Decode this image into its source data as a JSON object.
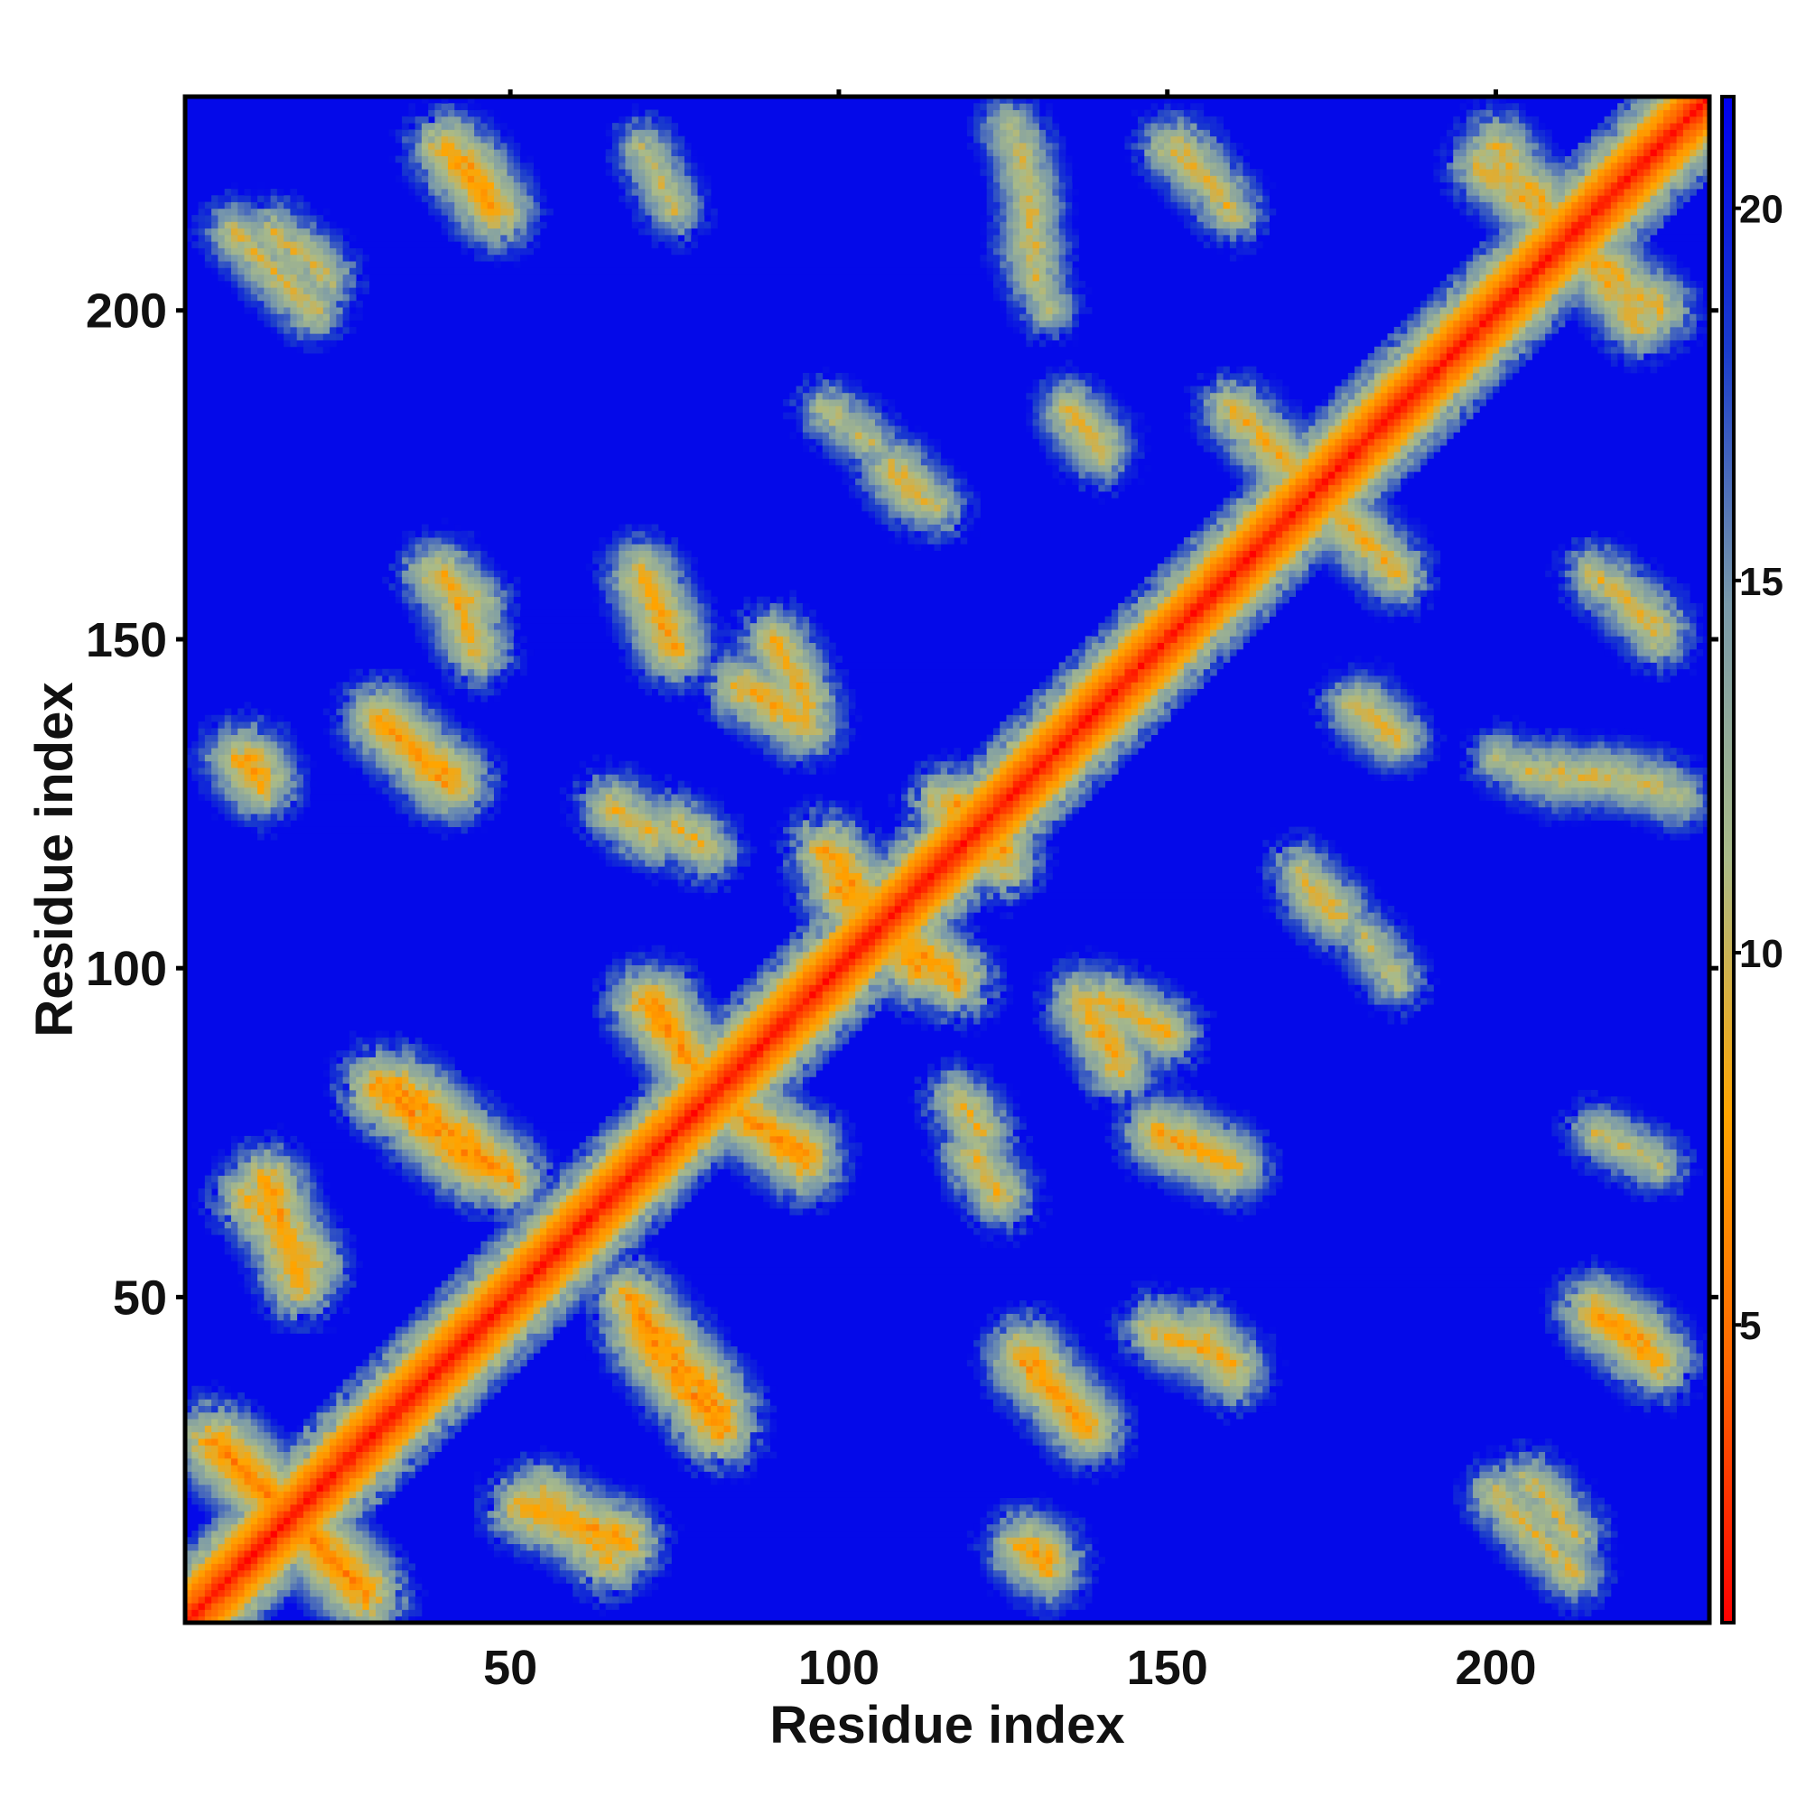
{
  "chart_data": {
    "type": "heatmap",
    "title": "",
    "xlabel": "Residue index",
    "ylabel": "Residue index",
    "n_residues": 232,
    "xlim": [
      1,
      232
    ],
    "ylim": [
      1,
      232
    ],
    "xticks": [
      50,
      100,
      150,
      200
    ],
    "yticks": [
      50,
      100,
      150,
      200
    ],
    "colorbar": {
      "ticks": [
        5,
        10,
        15,
        20
      ],
      "range": [
        1,
        21.5
      ],
      "colors": [
        "#ff0000",
        "#ff6600",
        "#ffa500",
        "#aabb88",
        "#7a9aaa",
        "#1a3ccc",
        "#0000ee"
      ]
    },
    "background_value": 21,
    "diagonal_value": 1,
    "contact_segments": [
      {
        "from": [
          5,
          28
        ],
        "to": [
          25,
          8
        ],
        "value": 4.5
      },
      {
        "from": [
          48,
          48
        ],
        "to": [
          68,
          68
        ],
        "value": 5
      },
      {
        "from": [
          33,
          82
        ],
        "to": [
          50,
          68
        ],
        "value": 5.5
      },
      {
        "from": [
          70,
          45
        ],
        "to": [
          82,
          30
        ],
        "value": 5
      },
      {
        "from": [
          13,
          68
        ],
        "to": [
          18,
          52
        ],
        "value": 6
      },
      {
        "from": [
          72,
          95
        ],
        "to": [
          78,
          85
        ],
        "value": 5.5
      },
      {
        "from": [
          85,
          78
        ],
        "to": [
          95,
          70
        ],
        "value": 6
      },
      {
        "from": [
          98,
          118
        ],
        "to": [
          112,
          100
        ],
        "value": 5.5
      },
      {
        "from": [
          116,
          125
        ],
        "to": [
          125,
          118
        ],
        "value": 6
      },
      {
        "from": [
          30,
          138
        ],
        "to": [
          40,
          128
        ],
        "value": 6
      },
      {
        "from": [
          85,
          143
        ],
        "to": [
          95,
          137
        ],
        "value": 6.5
      },
      {
        "from": [
          70,
          160
        ],
        "to": [
          75,
          148
        ],
        "value": 6.5
      },
      {
        "from": [
          40,
          160
        ],
        "to": [
          45,
          148
        ],
        "value": 7
      },
      {
        "from": [
          43,
          223
        ],
        "to": [
          48,
          215
        ],
        "value": 6
      },
      {
        "from": [
          128,
          42
        ],
        "to": [
          138,
          30
        ],
        "value": 6
      },
      {
        "from": [
          140,
          95
        ],
        "to": [
          150,
          90
        ],
        "value": 7
      },
      {
        "from": [
          150,
          75
        ],
        "to": [
          160,
          70
        ],
        "value": 7
      },
      {
        "from": [
          155,
          45
        ],
        "to": [
          160,
          38
        ],
        "value": 7.5
      },
      {
        "from": [
          215,
          48
        ],
        "to": [
          225,
          40
        ],
        "value": 6
      },
      {
        "from": [
          205,
          22
        ],
        "to": [
          212,
          14
        ],
        "value": 8
      },
      {
        "from": [
          200,
          225
        ],
        "to": [
          222,
          198
        ],
        "value": 7
      },
      {
        "from": [
          165,
          180
        ],
        "to": [
          185,
          160
        ],
        "value": 7
      },
      {
        "from": [
          172,
          112
        ],
        "to": [
          176,
          108
        ],
        "value": 7
      },
      {
        "from": [
          10,
          132
        ],
        "to": [
          12,
          128
        ],
        "value": 6
      },
      {
        "from": [
          128,
          12
        ],
        "to": [
          132,
          8
        ],
        "value": 7
      },
      {
        "from": [
          75,
          122
        ],
        "to": [
          80,
          118
        ],
        "value": 7.5
      },
      {
        "from": [
          120,
          72
        ],
        "to": [
          125,
          65
        ],
        "value": 7.5
      },
      {
        "from": [
          108,
          175
        ],
        "to": [
          115,
          170
        ],
        "value": 8.5
      },
      {
        "from": [
          135,
          185
        ],
        "to": [
          140,
          178
        ],
        "value": 8
      },
      {
        "from": [
          220,
          155
        ],
        "to": [
          225,
          150
        ],
        "value": 8.5
      },
      {
        "from": [
          180,
          140
        ],
        "to": [
          185,
          135
        ],
        "value": 8
      },
      {
        "from": [
          180,
          105
        ],
        "to": [
          185,
          98
        ],
        "value": 9
      },
      {
        "from": [
          8,
          212
        ],
        "to": [
          20,
          200
        ],
        "value": 8
      },
      {
        "from": [
          70,
          225
        ],
        "to": [
          75,
          215
        ],
        "value": 9
      },
      {
        "from": [
          128,
          225
        ],
        "to": [
          130,
          205
        ],
        "value": 8.5
      },
      {
        "from": [
          152,
          225
        ],
        "to": [
          160,
          215
        ],
        "value": 8
      },
      {
        "from": [
          215,
          130
        ],
        "to": [
          228,
          126
        ],
        "value": 9
      },
      {
        "from": [
          200,
          132
        ],
        "to": [
          210,
          128
        ],
        "value": 9.5
      },
      {
        "from": [
          55,
          20
        ],
        "to": [
          65,
          10
        ],
        "value": 6.5
      }
    ]
  }
}
